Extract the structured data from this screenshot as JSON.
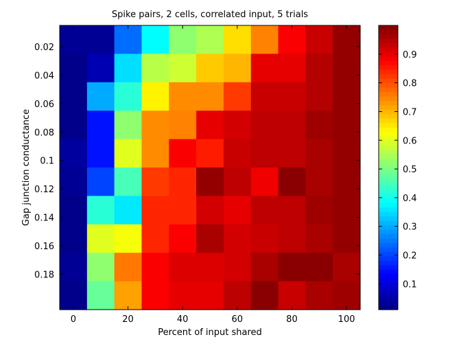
{
  "chart_data": {
    "type": "heatmap",
    "title": "Spike pairs, 2 cells, correlated input, 5 trials",
    "xlabel": "Percent of input shared",
    "ylabel": "Gap junction conductance",
    "x": [
      0,
      10,
      20,
      30,
      40,
      50,
      60,
      70,
      80,
      90,
      100
    ],
    "x_ticks": [
      "0",
      "20",
      "40",
      "60",
      "80",
      "100"
    ],
    "y": [
      0.01,
      0.02,
      0.03,
      0.04,
      0.05,
      0.06,
      0.07,
      0.08,
      0.09,
      0.1,
      0.11,
      0.12,
      0.13,
      0.14,
      0.15,
      0.16,
      0.17,
      0.18,
      0.19,
      0.2
    ],
    "y_ticks": [
      "0.02",
      "0.04",
      "0.06",
      "0.08",
      "0.1",
      "0.12",
      "0.14",
      "0.16",
      "0.18"
    ],
    "values": [
      [
        0.03,
        0.03,
        0.24,
        0.38,
        0.52,
        0.55,
        0.66,
        0.75,
        0.88,
        0.93,
        0.98
      ],
      [
        0.03,
        0.03,
        0.24,
        0.38,
        0.52,
        0.55,
        0.66,
        0.75,
        0.88,
        0.93,
        0.98
      ],
      [
        0.02,
        0.06,
        0.35,
        0.56,
        0.58,
        0.68,
        0.7,
        0.9,
        0.9,
        0.95,
        0.98
      ],
      [
        0.02,
        0.06,
        0.35,
        0.56,
        0.58,
        0.68,
        0.7,
        0.9,
        0.9,
        0.95,
        0.98
      ],
      [
        0.02,
        0.3,
        0.42,
        0.64,
        0.74,
        0.74,
        0.82,
        0.93,
        0.93,
        0.95,
        0.98
      ],
      [
        0.02,
        0.3,
        0.42,
        0.64,
        0.74,
        0.74,
        0.82,
        0.93,
        0.93,
        0.95,
        0.98
      ],
      [
        0.02,
        0.15,
        0.52,
        0.74,
        0.75,
        0.9,
        0.92,
        0.94,
        0.94,
        0.97,
        0.98
      ],
      [
        0.02,
        0.15,
        0.52,
        0.74,
        0.75,
        0.9,
        0.92,
        0.94,
        0.94,
        0.97,
        0.98
      ],
      [
        0.04,
        0.15,
        0.6,
        0.74,
        0.88,
        0.85,
        0.93,
        0.94,
        0.94,
        0.96,
        0.98
      ],
      [
        0.04,
        0.15,
        0.6,
        0.74,
        0.88,
        0.85,
        0.93,
        0.94,
        0.94,
        0.96,
        0.98
      ],
      [
        0.03,
        0.2,
        0.45,
        0.82,
        0.84,
        0.98,
        0.94,
        0.89,
        0.99,
        0.96,
        0.98
      ],
      [
        0.03,
        0.2,
        0.45,
        0.82,
        0.84,
        0.98,
        0.94,
        0.89,
        0.99,
        0.96,
        0.98
      ],
      [
        0.02,
        0.42,
        0.36,
        0.84,
        0.84,
        0.92,
        0.9,
        0.94,
        0.94,
        0.97,
        0.98
      ],
      [
        0.02,
        0.42,
        0.36,
        0.84,
        0.84,
        0.92,
        0.9,
        0.94,
        0.94,
        0.97,
        0.98
      ],
      [
        0.02,
        0.6,
        0.62,
        0.84,
        0.88,
        0.96,
        0.92,
        0.93,
        0.94,
        0.96,
        0.98
      ],
      [
        0.02,
        0.6,
        0.62,
        0.84,
        0.88,
        0.96,
        0.92,
        0.93,
        0.94,
        0.96,
        0.98
      ],
      [
        0.03,
        0.52,
        0.76,
        0.88,
        0.91,
        0.91,
        0.92,
        0.96,
        0.99,
        0.99,
        0.96
      ],
      [
        0.03,
        0.52,
        0.76,
        0.88,
        0.91,
        0.91,
        0.92,
        0.96,
        0.99,
        0.99,
        0.96
      ],
      [
        0.02,
        0.48,
        0.72,
        0.88,
        0.9,
        0.9,
        0.94,
        0.99,
        0.93,
        0.96,
        0.97
      ],
      [
        0.02,
        0.48,
        0.72,
        0.88,
        0.9,
        0.9,
        0.94,
        0.99,
        0.93,
        0.96,
        0.97
      ]
    ],
    "colorbar_ticks": [
      "0.1",
      "0.2",
      "0.3",
      "0.4",
      "0.5",
      "0.6",
      "0.7",
      "0.8",
      "0.9"
    ],
    "colorbar_range": [
      0.01,
      1.0
    ],
    "colormap": "jet",
    "grid": false,
    "legend": "none"
  }
}
